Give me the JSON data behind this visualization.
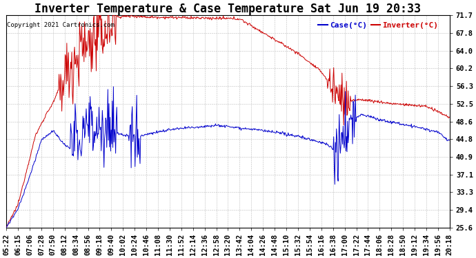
{
  "title": "Inverter Temperature & Case Temperature Sat Jun 19 20:33",
  "copyright": "Copyright 2021 Cartronics.com",
  "legend_case": "Case(°C)",
  "legend_inverter": "Inverter(°C)",
  "yticks": [
    25.6,
    29.4,
    33.3,
    37.1,
    40.9,
    44.8,
    48.6,
    52.5,
    56.3,
    60.2,
    64.0,
    67.8,
    71.7
  ],
  "ymin": 25.6,
  "ymax": 71.7,
  "bg_color": "#ffffff",
  "plot_bg_color": "#ffffff",
  "grid_color": "#bbbbbb",
  "title_fontsize": 12,
  "tick_fontsize": 7.5,
  "case_color": "#0000cc",
  "inverter_color": "#cc0000",
  "xtick_labels": [
    "05:22",
    "06:15",
    "07:06",
    "07:28",
    "07:50",
    "08:12",
    "08:34",
    "08:56",
    "09:18",
    "09:40",
    "10:02",
    "10:24",
    "10:46",
    "11:08",
    "11:30",
    "11:52",
    "12:14",
    "12:36",
    "12:58",
    "13:20",
    "13:42",
    "14:04",
    "14:26",
    "14:48",
    "15:10",
    "15:32",
    "15:54",
    "16:16",
    "16:38",
    "17:00",
    "17:22",
    "17:44",
    "18:06",
    "18:28",
    "18:50",
    "19:12",
    "19:34",
    "19:56",
    "20:18"
  ]
}
